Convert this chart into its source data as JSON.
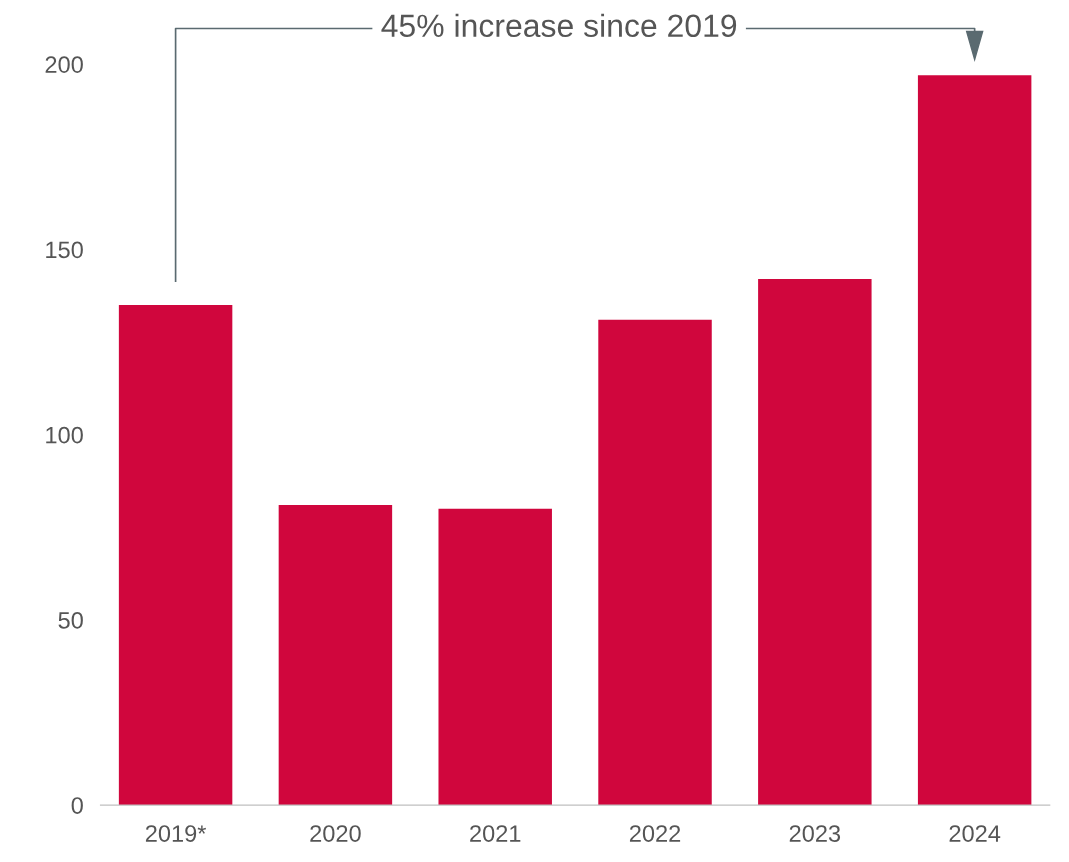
{
  "chart_data": {
    "type": "bar",
    "categories": [
      "2019*",
      "2020",
      "2021",
      "2022",
      "2023",
      "2024"
    ],
    "values": [
      135,
      81,
      80,
      131,
      142,
      197
    ],
    "color": "#d0063d",
    "ylim": [
      0,
      215
    ],
    "yticks": [
      0,
      50,
      100,
      150,
      200
    ],
    "grid": false,
    "annotations": [
      "45% increase since 2019"
    ]
  }
}
